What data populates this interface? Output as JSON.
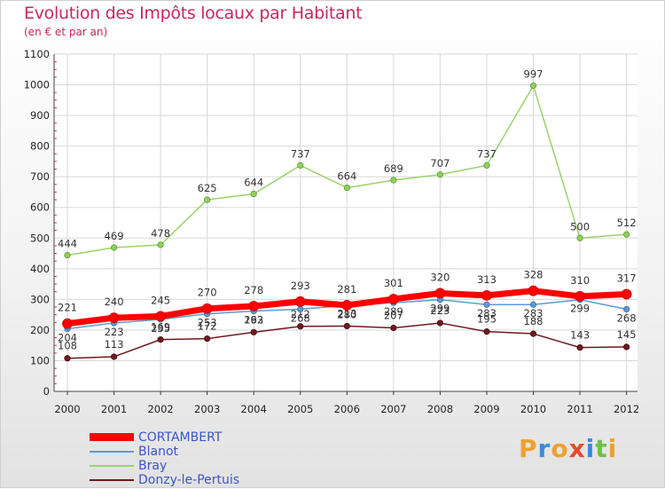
{
  "chart_data": {
    "type": "line",
    "title": "Evolution des Impôts locaux par Habitant",
    "subtitle": "(en € et par an)",
    "xlabel": "",
    "ylabel": "",
    "ylim": [
      0,
      1100
    ],
    "yticks": [
      0,
      100,
      200,
      300,
      400,
      500,
      600,
      700,
      800,
      900,
      1000,
      1100
    ],
    "categories": [
      "2000",
      "2001",
      "2002",
      "2003",
      "2004",
      "2005",
      "2006",
      "2007",
      "2008",
      "2009",
      "2010",
      "2011",
      "2012"
    ],
    "grid": true,
    "legend_position": "bottom-left",
    "series": [
      {
        "name": "Donzy-le-Pertuis",
        "color": "#6e1a1f",
        "values": [
          108,
          113,
          169,
          172,
          193,
          212,
          213,
          207,
          223,
          195,
          188,
          143,
          145
        ]
      },
      {
        "name": "Blanot",
        "color": "#5b9bd5",
        "values": [
          204,
          223,
          235,
          253,
          262,
          268,
          280,
          289,
          299,
          283,
          283,
          299,
          268
        ]
      },
      {
        "name": "Bray",
        "color": "#99d36b",
        "values": [
          444,
          469,
          478,
          625,
          644,
          737,
          664,
          689,
          707,
          737,
          997,
          500,
          512
        ]
      },
      {
        "name": "CORTAMBERT",
        "color": "#ff0000",
        "values": [
          221,
          240,
          245,
          270,
          278,
          293,
          281,
          301,
          320,
          313,
          328,
          310,
          317
        ]
      }
    ]
  },
  "legend": {
    "items": [
      {
        "label": "CORTAMBERT",
        "color": "#ff0000"
      },
      {
        "label": "Blanot",
        "color": "#5b9bd5"
      },
      {
        "label": "Bray",
        "color": "#99d36b"
      },
      {
        "label": "Donzy-le-Pertuis",
        "color": "#6e1a1f"
      }
    ]
  },
  "logo": {
    "text": "Proxiti",
    "letters": [
      "P",
      "r",
      "o",
      "x",
      "i",
      "t",
      "i"
    ],
    "letter_colors": [
      "#f0a030",
      "#3c8ad8",
      "#f0a030",
      "#e84a2a",
      "#3c8ad8",
      "#6cc04a",
      "#f0a030"
    ]
  }
}
